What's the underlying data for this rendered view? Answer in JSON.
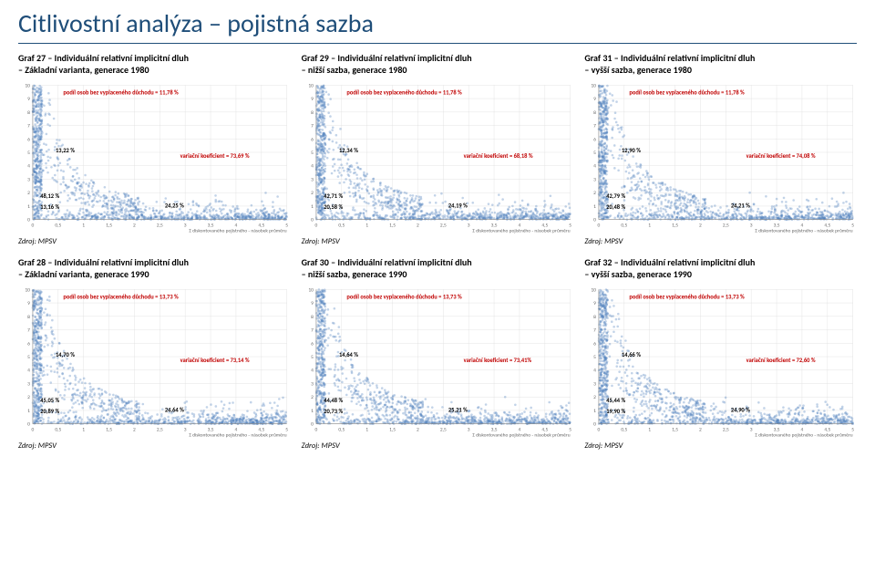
{
  "pageTitle": "Citlivostní analýza – pojistná sazba",
  "source_label": "Zdroj: MPSV",
  "axis": {
    "ylim": [
      0,
      10
    ],
    "ytick_step": 1,
    "xlim": [
      0,
      5
    ],
    "xtick_step": 0.5,
    "xlabel": "Σ diskontovaného pojistného - násobek průměru",
    "grid_color": "#ddd",
    "axis_color": "#888",
    "bg": "#ffffff"
  },
  "scatter_style": {
    "marker_color": "#4f81bd",
    "marker_opacity": 0.35,
    "marker_size": 1.3
  },
  "charts": [
    {
      "id": "g27",
      "title_l1": "Graf 27 – Individuální relativní implicitní dluh",
      "title_l2": "– Základní varianta, generace 1980",
      "anno_top": "podíl osob bez vyplaceného důchodu = 11,78 %",
      "anno_mid_left": "13,22 %",
      "anno_mid_right": "variační koeficient = 73,69 %",
      "anno_low_left": "48,12 %",
      "anno_low_left2": "13,16 %",
      "anno_low_right": "24,25 %"
    },
    {
      "id": "g29",
      "title_l1": "Graf 29 – Individuální relativní implicitní dluh",
      "title_l2": "– nižší sazba, generace 1980",
      "anno_top": "podíl osob bez vyplaceného důchodu = 11,78 %",
      "anno_mid_left": "12,34 %",
      "anno_mid_right": "variační koeficient = 68,18 %",
      "anno_low_left": "42,71 %",
      "anno_low_left2": "20,58 %",
      "anno_low_right": "24,19 %"
    },
    {
      "id": "g31",
      "title_l1": "Graf 31 – Individuální relativní implicitní dluh",
      "title_l2": "– vyšší sazba, generace 1980",
      "anno_top": "podíl osob bez vyplaceného důchodu = 11,78 %",
      "anno_mid_left": "12,90 %",
      "anno_mid_right": "variační koeficient = 74,08 %",
      "anno_low_left": "42,79 %",
      "anno_low_left2": "20,48 %",
      "anno_low_right": "24,21 %"
    },
    {
      "id": "g28",
      "title_l1": "Graf 28 – Individuální relativní implicitní dluh",
      "title_l2": "– Základní varianta, generace 1990",
      "anno_top": "podíl osob bez vyplaceného důchodu = 13,73 %",
      "anno_mid_left": "14,70 %",
      "anno_mid_right": "variační koeficient = 73,14 %",
      "anno_low_left": "45,05 %",
      "anno_low_left2": "20,89 %",
      "anno_low_right": "24,64 %"
    },
    {
      "id": "g30",
      "title_l1": "Graf 30 – Individuální relativní implicitní dluh",
      "title_l2": "– nižší sazba, generace 1990",
      "anno_top": "podíl osob bez vyplaceného důchodu = 13,73 %",
      "anno_mid_left": "14,64 %",
      "anno_mid_right": "variační koeficient = 73,41%",
      "anno_low_left": "44,48 %",
      "anno_low_left2": "20,73 %",
      "anno_low_right": "25,21 %"
    },
    {
      "id": "g32",
      "title_l1": "Graf 32 – Individuální relativní implicitní dluh",
      "title_l2": "– vyšší sazba, generace 1990",
      "anno_top": "podíl osob bez vyplaceného důchodu = 13,73 %",
      "anno_mid_left": "14,66 %",
      "anno_mid_right": "variační koeficient = 72,60 %",
      "anno_low_left": "45,44 %",
      "anno_low_left2": "19,90 %",
      "anno_low_right": "24,90 %"
    }
  ]
}
